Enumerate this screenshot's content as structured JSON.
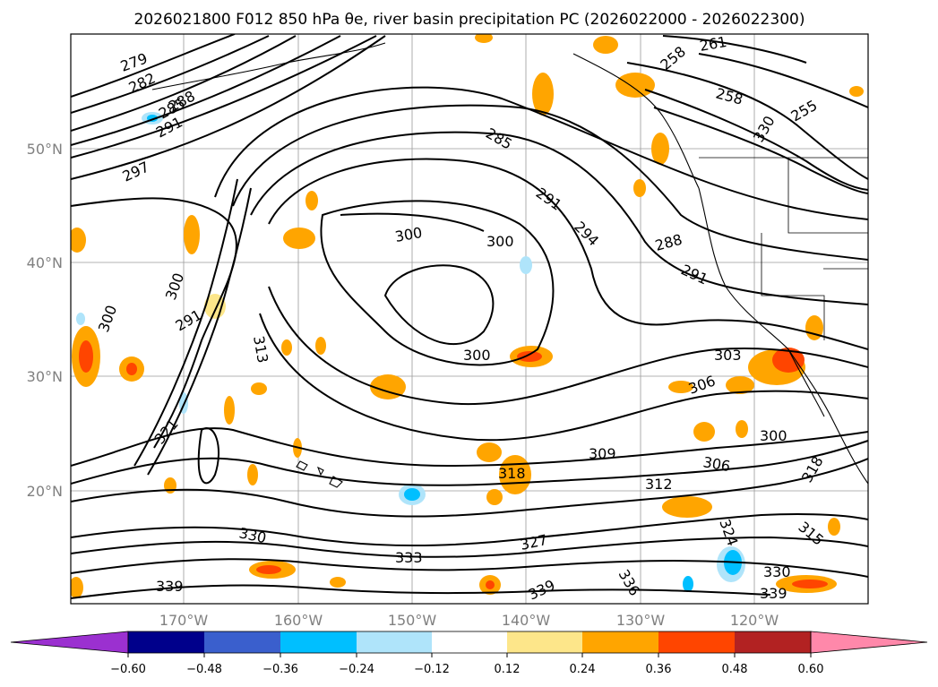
{
  "title": "2026021800 F012 850 hPa θe, river basin precipitation PC (2026022000 - 2026022300)",
  "map": {
    "lon_labels": [
      "170°W",
      "160°W",
      "150°W",
      "140°W",
      "130°W",
      "120°W"
    ],
    "lat_labels": [
      "50°N",
      "40°N",
      "30°N",
      "20°N"
    ],
    "contour_labels": [
      "279",
      "282",
      "285",
      "288",
      "291",
      "297",
      "300",
      "300",
      "300",
      "294",
      "291",
      "288",
      "291",
      "285",
      "258",
      "261",
      "258",
      "255",
      "300",
      "291",
      "313",
      "321",
      "300",
      "303",
      "306",
      "300",
      "309",
      "306",
      "312",
      "318",
      "318",
      "330",
      "333",
      "327",
      "324",
      "315",
      "330",
      "339",
      "339",
      "339",
      "336",
      "330"
    ]
  },
  "colorbar": {
    "ticks": [
      "−0.60",
      "−0.48",
      "−0.36",
      "−0.24",
      "−0.12",
      "0.12",
      "0.24",
      "0.36",
      "0.48",
      "0.60"
    ],
    "colors": [
      "#9b30d0",
      "#00008b",
      "#3a5fcd",
      "#00bfff",
      "#afe4fa",
      "#ffffff",
      "#fde68a",
      "#ffa500",
      "#ff4500",
      "#b22222",
      "#ff88aa"
    ]
  }
}
